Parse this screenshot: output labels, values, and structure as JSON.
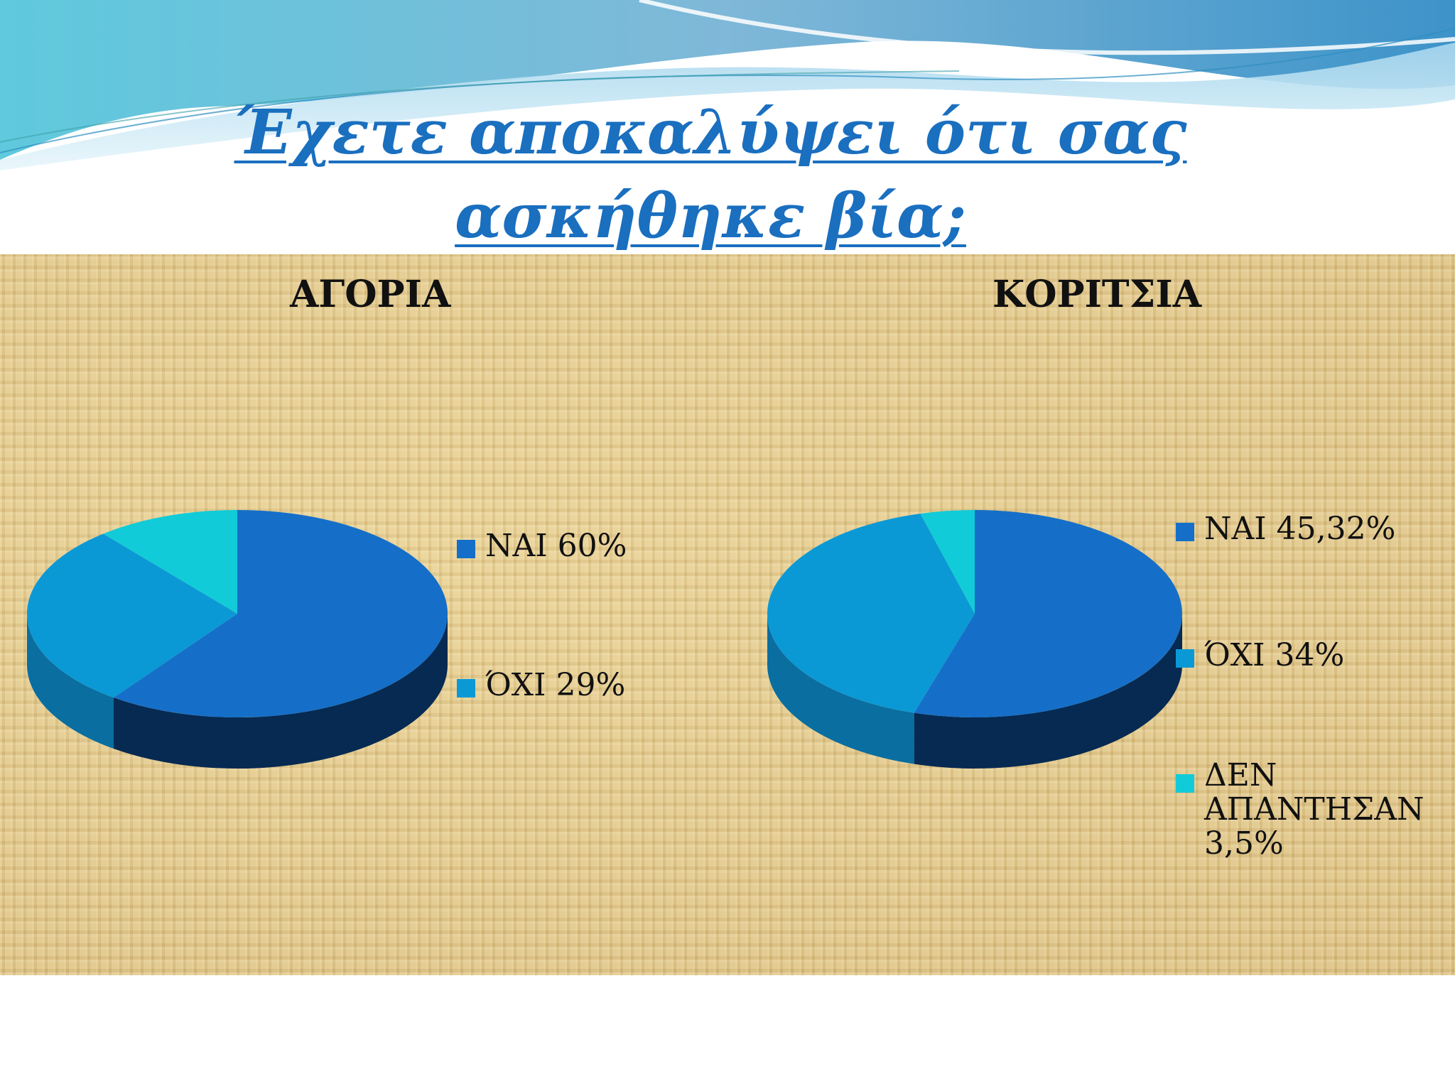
{
  "title": "Έχετε αποκαλύψει ότι σας ασκήθηκε βία;",
  "colors": {
    "nai": "#156fc8",
    "oxi": "#0b99d6",
    "no_answer": "#12cbd8",
    "title": "#1a6fbf"
  },
  "chart_data": [
    {
      "type": "pie",
      "title": "ΑΓΟΡΙΑ",
      "legend": [
        "ΝΑΙ 60%",
        "ΌΧΙ 29%"
      ],
      "slices": [
        {
          "label": "ΝΑΙ",
          "value": 60
        },
        {
          "label": "ΌΧΙ",
          "value": 29
        },
        {
          "label": "",
          "value": 11
        }
      ],
      "legend_placement": "right"
    },
    {
      "type": "pie",
      "title": "ΚΟΡΙΤΣΙΑ",
      "legend": [
        "ΝΑΙ 45,32%",
        "ΌΧΙ 34%",
        "ΔΕΝ ΑΠΑΝΤΗΣΑΝ 3,5%"
      ],
      "legend_lines_3": [
        "ΔΕΝ",
        "ΑΠΑΝΤΗΣΑΝ",
        "3,5%"
      ],
      "slices": [
        {
          "label": "ΝΑΙ",
          "value": 45.32
        },
        {
          "label": "ΌΧΙ",
          "value": 34
        },
        {
          "label": "ΔΕΝ ΑΠΑΝΤΗΣΑΝ",
          "value": 3.5
        }
      ],
      "legend_placement": "right"
    }
  ]
}
